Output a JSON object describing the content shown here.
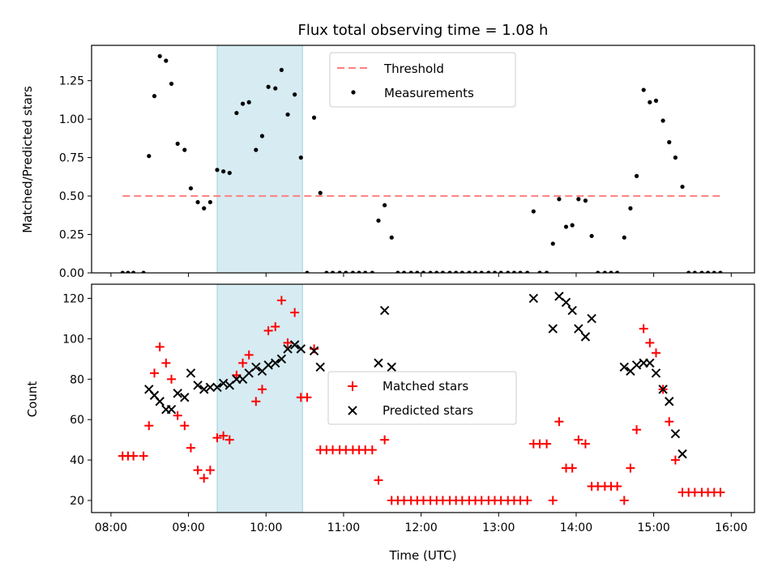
{
  "chart_data": {
    "title": "Flux total observing time = 1.08 h",
    "xlabel": "Time (UTC)",
    "x_unit": "hours UTC",
    "xlim": [
      7.75,
      16.3
    ],
    "xticks": [
      8,
      9,
      10,
      11,
      12,
      13,
      14,
      15,
      16
    ],
    "xtick_labels": [
      "08:00",
      "09:00",
      "10:00",
      "11:00",
      "12:00",
      "13:00",
      "14:00",
      "15:00",
      "16:00"
    ],
    "highlight_span": [
      9.37,
      10.47
    ],
    "highlight_color": "#add8e6",
    "panels": [
      {
        "type": "scatter",
        "ylabel": "Matched/Predicted stars",
        "ylim": [
          0,
          1.48
        ],
        "yticks": [
          0,
          0.25,
          0.5,
          0.75,
          1.0,
          1.25
        ],
        "ytick_labels": [
          "0.00",
          "0.25",
          "0.50",
          "0.75",
          "1.00",
          "1.25"
        ],
        "legend_position": "upper center",
        "threshold": {
          "name": "Threshold",
          "y": 0.5,
          "x_range": [
            8.15,
            15.9
          ],
          "color": "#ff7f7f",
          "style": "dashed"
        },
        "series": [
          {
            "name": "Measurements",
            "marker": "dot",
            "color": "#000000",
            "x": [
              8.15,
              8.22,
              8.29,
              8.42,
              8.49,
              8.56,
              8.63,
              8.71,
              8.78,
              8.86,
              8.95,
              9.03,
              9.12,
              9.2,
              9.28,
              9.37,
              9.45,
              9.53,
              9.62,
              9.7,
              9.78,
              9.87,
              9.95,
              10.03,
              10.12,
              10.2,
              10.28,
              10.37,
              10.45,
              10.53,
              10.62,
              10.7,
              10.78,
              10.86,
              10.95,
              11.03,
              11.12,
              11.2,
              11.28,
              11.37,
              11.45,
              11.53,
              11.62,
              11.7,
              11.78,
              11.87,
              11.95,
              12.03,
              12.12,
              12.2,
              12.28,
              12.37,
              12.45,
              12.53,
              12.62,
              12.7,
              12.78,
              12.87,
              12.95,
              13.03,
              13.12,
              13.2,
              13.28,
              13.37,
              13.45,
              13.53,
              13.62,
              13.7,
              13.78,
              13.87,
              13.95,
              14.03,
              14.12,
              14.2,
              14.28,
              14.37,
              14.45,
              14.53,
              14.62,
              14.7,
              14.78,
              14.87,
              14.95,
              15.03,
              15.12,
              15.2,
              15.28,
              15.37,
              15.45,
              15.53,
              15.62,
              15.7,
              15.78,
              15.86
            ],
            "y": [
              0,
              0,
              0,
              0,
              0.76,
              1.15,
              1.41,
              1.38,
              1.23,
              0.84,
              0.8,
              0.55,
              0.46,
              0.42,
              0.46,
              0.67,
              0.66,
              0.65,
              1.04,
              1.1,
              1.11,
              0.8,
              0.89,
              1.21,
              1.2,
              1.32,
              1.03,
              1.16,
              0.75,
              0,
              1.01,
              0.52,
              0,
              0,
              0,
              0,
              0,
              0,
              0,
              0,
              0.34,
              0.44,
              0.23,
              0,
              0,
              0,
              0,
              0,
              0,
              0,
              0,
              0,
              0,
              0,
              0,
              0,
              0,
              0,
              0,
              0,
              0,
              0,
              0,
              0,
              0.4,
              0,
              0,
              0.19,
              0.48,
              0.3,
              0.31,
              0.48,
              0.47,
              0.24,
              0,
              0,
              0,
              0,
              0.23,
              0.42,
              0.63,
              1.19,
              1.11,
              1.12,
              0.99,
              0.85,
              0.75,
              0.56,
              0,
              0,
              0,
              0,
              0,
              0
            ]
          }
        ]
      },
      {
        "type": "scatter",
        "ylabel": "Count",
        "ylim": [
          14,
          127
        ],
        "yticks": [
          20,
          40,
          60,
          80,
          100,
          120
        ],
        "ytick_labels": [
          "20",
          "40",
          "60",
          "80",
          "100",
          "120"
        ],
        "legend_position": "center",
        "series": [
          {
            "name": "Matched stars",
            "marker": "plus",
            "color": "#ff0000",
            "x": [
              8.15,
              8.22,
              8.29,
              8.42,
              8.49,
              8.56,
              8.63,
              8.71,
              8.78,
              8.86,
              8.95,
              9.03,
              9.12,
              9.2,
              9.28,
              9.37,
              9.45,
              9.53,
              9.62,
              9.7,
              9.78,
              9.87,
              9.95,
              10.03,
              10.12,
              10.2,
              10.28,
              10.37,
              10.45,
              10.53,
              10.62,
              10.7,
              10.78,
              10.86,
              10.95,
              11.03,
              11.12,
              11.2,
              11.28,
              11.37,
              11.45,
              11.53,
              11.62,
              11.7,
              11.78,
              11.87,
              11.95,
              12.03,
              12.12,
              12.2,
              12.28,
              12.37,
              12.45,
              12.53,
              12.62,
              12.7,
              12.78,
              12.87,
              12.95,
              13.03,
              13.12,
              13.2,
              13.28,
              13.37,
              13.45,
              13.53,
              13.62,
              13.7,
              13.78,
              13.87,
              13.95,
              14.03,
              14.12,
              14.2,
              14.28,
              14.37,
              14.45,
              14.53,
              14.62,
              14.7,
              14.78,
              14.87,
              14.95,
              15.03,
              15.12,
              15.2,
              15.28,
              15.37,
              15.45,
              15.53,
              15.62,
              15.7,
              15.78,
              15.86
            ],
            "y": [
              42,
              42,
              42,
              42,
              57,
              83,
              96,
              88,
              80,
              62,
              57,
              46,
              35,
              31,
              35,
              51,
              52,
              50,
              82,
              88,
              92,
              69,
              75,
              104,
              106,
              119,
              98,
              113,
              71,
              71,
              95,
              45,
              45,
              45,
              45,
              45,
              45,
              45,
              45,
              45,
              30,
              50,
              20,
              20,
              20,
              20,
              20,
              20,
              20,
              20,
              20,
              20,
              20,
              20,
              20,
              20,
              20,
              20,
              20,
              20,
              20,
              20,
              20,
              20,
              48,
              48,
              48,
              20,
              59,
              36,
              36,
              50,
              48,
              27,
              27,
              27,
              27,
              27,
              20,
              36,
              55,
              105,
              98,
              93,
              75,
              59,
              40,
              24,
              24,
              24,
              24,
              24,
              24,
              24
            ]
          },
          {
            "name": "Predicted stars",
            "marker": "x",
            "color": "#000000",
            "x": [
              8.49,
              8.56,
              8.63,
              8.71,
              8.78,
              8.86,
              8.95,
              9.03,
              9.12,
              9.2,
              9.28,
              9.37,
              9.45,
              9.53,
              9.62,
              9.7,
              9.78,
              9.87,
              9.95,
              10.03,
              10.12,
              10.2,
              10.28,
              10.37,
              10.45,
              10.62,
              10.7,
              11.45,
              11.53,
              11.62,
              13.45,
              13.7,
              13.78,
              13.87,
              13.95,
              14.03,
              14.12,
              14.2,
              14.62,
              14.7,
              14.78,
              14.87,
              14.95,
              15.03,
              15.12,
              15.2,
              15.28,
              15.37
            ],
            "y": [
              75,
              72,
              69,
              65,
              65,
              73,
              71,
              83,
              77,
              75,
              76,
              76,
              78,
              77,
              80,
              80,
              83,
              86,
              84,
              87,
              88,
              90,
              95,
              97,
              95,
              94,
              86,
              88,
              114,
              86,
              120,
              105,
              121,
              118,
              114,
              105,
              101,
              110,
              86,
              84,
              87,
              88,
              88,
              83,
              75,
              69,
              53,
              43
            ]
          }
        ]
      }
    ]
  }
}
